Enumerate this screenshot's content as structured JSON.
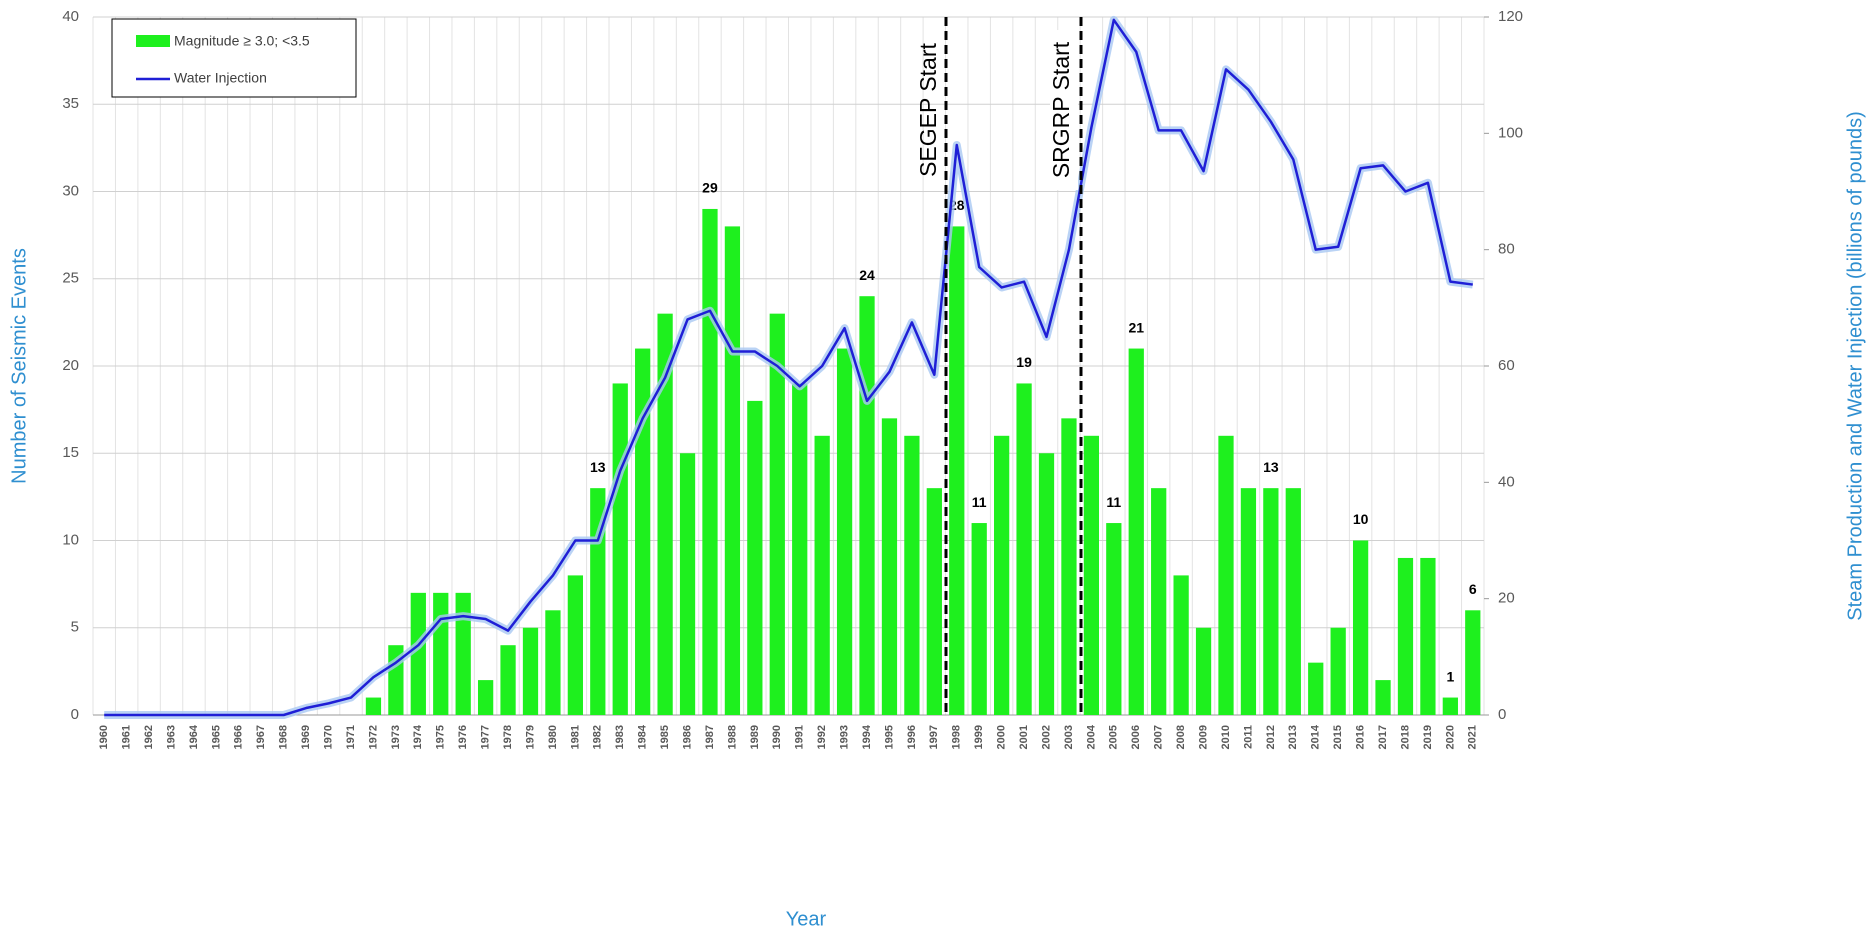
{
  "chart_data": {
    "type": "combo",
    "x_label": "Year",
    "y_label": "Number of Seismic Events",
    "y2_label": "Steam Production and Water Injection (billions of pounds)",
    "categories": [
      "1960",
      "1961",
      "1962",
      "1963",
      "1964",
      "1965",
      "1966",
      "1967",
      "1968",
      "1969",
      "1970",
      "1971",
      "1972",
      "1973",
      "1974",
      "1975",
      "1976",
      "1977",
      "1978",
      "1979",
      "1980",
      "1981",
      "1982",
      "1983",
      "1984",
      "1985",
      "1986",
      "1987",
      "1988",
      "1989",
      "1990",
      "1991",
      "1992",
      "1993",
      "1994",
      "1995",
      "1996",
      "1997",
      "1998",
      "1999",
      "2000",
      "2001",
      "2002",
      "2003",
      "2004",
      "2005",
      "2006",
      "2007",
      "2008",
      "2009",
      "2010",
      "2011",
      "2012",
      "2013",
      "2014",
      "2015",
      "2016",
      "2017",
      "2018",
      "2019",
      "2020",
      "2021"
    ],
    "series": [
      {
        "name": "Magnitude ≥ 3.0; <3.5",
        "type": "bar",
        "axis": "y",
        "color": "#1ef01e",
        "values": [
          0,
          0,
          0,
          0,
          0,
          0,
          0,
          0,
          0,
          0,
          0,
          0,
          1,
          4,
          7,
          7,
          7,
          2,
          4,
          5,
          6,
          8,
          13,
          19,
          21,
          23,
          15,
          29,
          28,
          18,
          23,
          19,
          16,
          21,
          24,
          17,
          16,
          13,
          28,
          11,
          16,
          19,
          15,
          17,
          16,
          11,
          21,
          13,
          8,
          5,
          16,
          13,
          13,
          13,
          3,
          5,
          10,
          2,
          9,
          9,
          1,
          6
        ],
        "value_labels": [
          null,
          null,
          null,
          null,
          null,
          null,
          null,
          null,
          null,
          null,
          null,
          null,
          null,
          null,
          null,
          null,
          null,
          null,
          null,
          null,
          null,
          null,
          "13",
          null,
          null,
          null,
          null,
          "29",
          null,
          null,
          null,
          null,
          null,
          null,
          "24",
          null,
          null,
          null,
          "28",
          "11",
          null,
          "19",
          null,
          null,
          null,
          "11",
          "21",
          null,
          null,
          null,
          null,
          null,
          "13",
          null,
          null,
          null,
          "10",
          null,
          null,
          null,
          "1",
          "6"
        ]
      },
      {
        "name": "Water Injection",
        "type": "line",
        "axis": "y2",
        "color": "#1f1fd6",
        "values": [
          0,
          0,
          0,
          0,
          0,
          0,
          0,
          0,
          0,
          1.2,
          2,
          3,
          6.5,
          9,
          12,
          16.5,
          17,
          16.5,
          14.5,
          19.5,
          24,
          30,
          30,
          42,
          51,
          58,
          68,
          69.5,
          62.5,
          62.5,
          60,
          56.5,
          60,
          66.5,
          54,
          59,
          67.5,
          58.5,
          98,
          77,
          73.5,
          74.5,
          65,
          80,
          101,
          119.5,
          114,
          100.5,
          100.5,
          93.5,
          111,
          107.5,
          102,
          95.5,
          80,
          80.5,
          94,
          94.5,
          90,
          91.5,
          74.5,
          74
        ]
      }
    ],
    "ylim": [
      0,
      40
    ],
    "yticks": [
      0,
      5,
      10,
      15,
      20,
      25,
      30,
      35,
      40
    ],
    "y2lim": [
      0,
      120
    ],
    "y2ticks": [
      0,
      20,
      40,
      60,
      80,
      100,
      120
    ],
    "grid": true,
    "legend": "upper left",
    "annotations": [
      {
        "text": "SEGEP Start"
      },
      {
        "text": "SRGRP Start"
      }
    ]
  }
}
